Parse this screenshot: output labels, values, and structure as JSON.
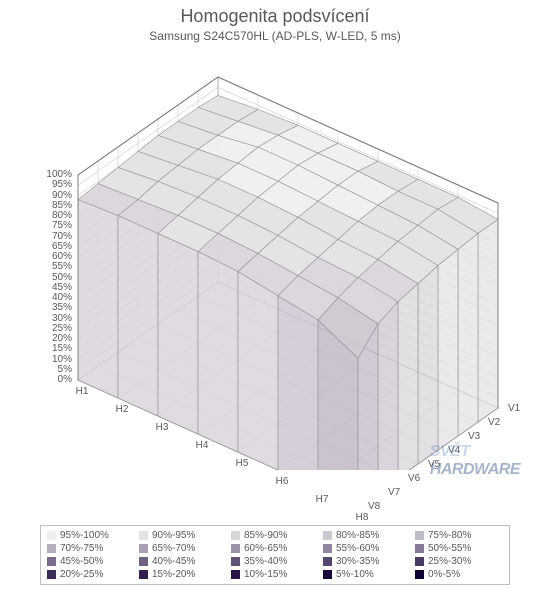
{
  "chart": {
    "type": "3d-surface",
    "title": "Homogenita podsvícení",
    "subtitle": "Samsung S24C570HL   (AD-PLS, W-LED, 5 ms)",
    "title_color": "#595959",
    "title_fontsize": 18,
    "subtitle_fontsize": 12,
    "background_color": "#ffffff",
    "frame_color": "#808080",
    "wall_color": "#ffffff",
    "grid_color": "#bfbfbf",
    "z_axis": {
      "min": 0,
      "max": 100,
      "tick_step": 5,
      "labels": [
        "0%",
        "5%",
        "10%",
        "15%",
        "20%",
        "25%",
        "30%",
        "35%",
        "40%",
        "45%",
        "50%",
        "55%",
        "60%",
        "65%",
        "70%",
        "75%",
        "80%",
        "85%",
        "90%",
        "95%",
        "100%"
      ]
    },
    "x_axis": {
      "categories": [
        "H1",
        "H2",
        "H3",
        "H4",
        "H5",
        "H6",
        "H7",
        "H8"
      ]
    },
    "y_axis": {
      "categories": [
        "V1",
        "V2",
        "V3",
        "V4",
        "V5",
        "V6",
        "V7",
        "V8"
      ]
    },
    "surface_data": [
      [
        91,
        93,
        94,
        94,
        94,
        94,
        94,
        92
      ],
      [
        92,
        94,
        96,
        96,
        96,
        95,
        95,
        92
      ],
      [
        92,
        94,
        97,
        97,
        96,
        95,
        94,
        91
      ],
      [
        92,
        94,
        96,
        96,
        95,
        94,
        93,
        90
      ],
      [
        91,
        93,
        95,
        95,
        94,
        92,
        91,
        88
      ],
      [
        90,
        92,
        93,
        93,
        92,
        90,
        89,
        86
      ],
      [
        89,
        90,
        91,
        91,
        90,
        88,
        86,
        82
      ],
      [
        88,
        89,
        89,
        89,
        88,
        85,
        82,
        72
      ]
    ],
    "legend_items": [
      {
        "label": "95%-100%",
        "color": "#f0efee"
      },
      {
        "label": "90%-95%",
        "color": "#e5e2e5"
      },
      {
        "label": "85%-90%",
        "color": "#d9d5db"
      },
      {
        "label": "80%-85%",
        "color": "#cdc7d1"
      },
      {
        "label": "75%-80%",
        "color": "#c1bac7"
      },
      {
        "label": "70%-75%",
        "color": "#b5adbd"
      },
      {
        "label": "65%-70%",
        "color": "#a9a0b3"
      },
      {
        "label": "60%-65%",
        "color": "#9d93a9"
      },
      {
        "label": "55%-60%",
        "color": "#91869f"
      },
      {
        "label": "50%-55%",
        "color": "#857995"
      },
      {
        "label": "45%-50%",
        "color": "#796d8b"
      },
      {
        "label": "40%-45%",
        "color": "#6d6081"
      },
      {
        "label": "35%-40%",
        "color": "#615377"
      },
      {
        "label": "30%-35%",
        "color": "#55466d"
      },
      {
        "label": "25%-30%",
        "color": "#493a63"
      },
      {
        "label": "20%-25%",
        "color": "#3d2d59"
      },
      {
        "label": "15%-20%",
        "color": "#31204f"
      },
      {
        "label": "10%-15%",
        "color": "#251345"
      },
      {
        "label": "5%-10%",
        "color": "#19063b"
      },
      {
        "label": "0%-5%",
        "color": "#0d0031"
      }
    ],
    "watermark": {
      "line1": "SVĚT",
      "line2": "HARDWARE"
    }
  }
}
